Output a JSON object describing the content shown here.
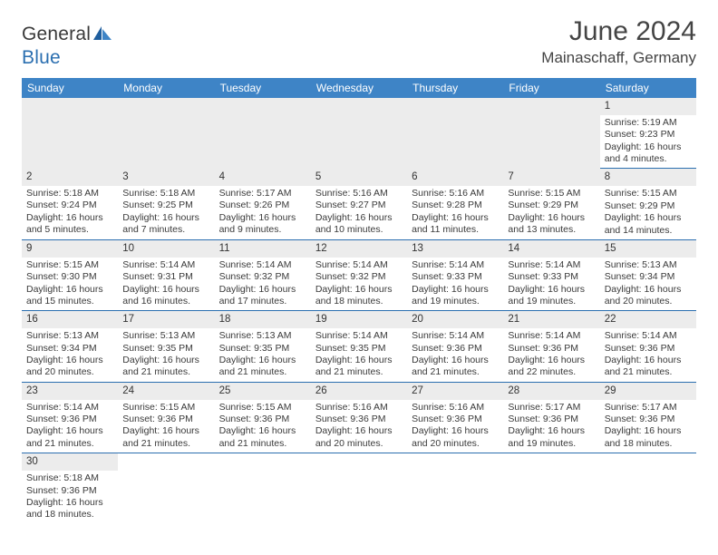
{
  "brand": {
    "name_a": "General",
    "name_b": "Blue"
  },
  "title": "June 2024",
  "location": "Mainaschaff, Germany",
  "colors": {
    "header_bg": "#3e84c6",
    "header_text": "#ffffff",
    "row_divider": "#2b6fb0",
    "daynum_bg": "#ececec",
    "text": "#3a3a3a",
    "brand_blue": "#2b6fb0"
  },
  "columns": [
    "Sunday",
    "Monday",
    "Tuesday",
    "Wednesday",
    "Thursday",
    "Friday",
    "Saturday"
  ],
  "weeks": [
    [
      null,
      null,
      null,
      null,
      null,
      null,
      {
        "n": "1",
        "sr": "Sunrise: 5:19 AM",
        "ss": "Sunset: 9:23 PM",
        "dl1": "Daylight: 16 hours",
        "dl2": "and 4 minutes."
      }
    ],
    [
      {
        "n": "2",
        "sr": "Sunrise: 5:18 AM",
        "ss": "Sunset: 9:24 PM",
        "dl1": "Daylight: 16 hours",
        "dl2": "and 5 minutes."
      },
      {
        "n": "3",
        "sr": "Sunrise: 5:18 AM",
        "ss": "Sunset: 9:25 PM",
        "dl1": "Daylight: 16 hours",
        "dl2": "and 7 minutes."
      },
      {
        "n": "4",
        "sr": "Sunrise: 5:17 AM",
        "ss": "Sunset: 9:26 PM",
        "dl1": "Daylight: 16 hours",
        "dl2": "and 9 minutes."
      },
      {
        "n": "5",
        "sr": "Sunrise: 5:16 AM",
        "ss": "Sunset: 9:27 PM",
        "dl1": "Daylight: 16 hours",
        "dl2": "and 10 minutes."
      },
      {
        "n": "6",
        "sr": "Sunrise: 5:16 AM",
        "ss": "Sunset: 9:28 PM",
        "dl1": "Daylight: 16 hours",
        "dl2": "and 11 minutes."
      },
      {
        "n": "7",
        "sr": "Sunrise: 5:15 AM",
        "ss": "Sunset: 9:29 PM",
        "dl1": "Daylight: 16 hours",
        "dl2": "and 13 minutes."
      },
      {
        "n": "8",
        "sr": "Sunrise: 5:15 AM",
        "ss": "Sunset: 9:29 PM",
        "dl1": "Daylight: 16 hours",
        "dl2": "and 14 minutes."
      }
    ],
    [
      {
        "n": "9",
        "sr": "Sunrise: 5:15 AM",
        "ss": "Sunset: 9:30 PM",
        "dl1": "Daylight: 16 hours",
        "dl2": "and 15 minutes."
      },
      {
        "n": "10",
        "sr": "Sunrise: 5:14 AM",
        "ss": "Sunset: 9:31 PM",
        "dl1": "Daylight: 16 hours",
        "dl2": "and 16 minutes."
      },
      {
        "n": "11",
        "sr": "Sunrise: 5:14 AM",
        "ss": "Sunset: 9:32 PM",
        "dl1": "Daylight: 16 hours",
        "dl2": "and 17 minutes."
      },
      {
        "n": "12",
        "sr": "Sunrise: 5:14 AM",
        "ss": "Sunset: 9:32 PM",
        "dl1": "Daylight: 16 hours",
        "dl2": "and 18 minutes."
      },
      {
        "n": "13",
        "sr": "Sunrise: 5:14 AM",
        "ss": "Sunset: 9:33 PM",
        "dl1": "Daylight: 16 hours",
        "dl2": "and 19 minutes."
      },
      {
        "n": "14",
        "sr": "Sunrise: 5:14 AM",
        "ss": "Sunset: 9:33 PM",
        "dl1": "Daylight: 16 hours",
        "dl2": "and 19 minutes."
      },
      {
        "n": "15",
        "sr": "Sunrise: 5:13 AM",
        "ss": "Sunset: 9:34 PM",
        "dl1": "Daylight: 16 hours",
        "dl2": "and 20 minutes."
      }
    ],
    [
      {
        "n": "16",
        "sr": "Sunrise: 5:13 AM",
        "ss": "Sunset: 9:34 PM",
        "dl1": "Daylight: 16 hours",
        "dl2": "and 20 minutes."
      },
      {
        "n": "17",
        "sr": "Sunrise: 5:13 AM",
        "ss": "Sunset: 9:35 PM",
        "dl1": "Daylight: 16 hours",
        "dl2": "and 21 minutes."
      },
      {
        "n": "18",
        "sr": "Sunrise: 5:13 AM",
        "ss": "Sunset: 9:35 PM",
        "dl1": "Daylight: 16 hours",
        "dl2": "and 21 minutes."
      },
      {
        "n": "19",
        "sr": "Sunrise: 5:14 AM",
        "ss": "Sunset: 9:35 PM",
        "dl1": "Daylight: 16 hours",
        "dl2": "and 21 minutes."
      },
      {
        "n": "20",
        "sr": "Sunrise: 5:14 AM",
        "ss": "Sunset: 9:36 PM",
        "dl1": "Daylight: 16 hours",
        "dl2": "and 21 minutes."
      },
      {
        "n": "21",
        "sr": "Sunrise: 5:14 AM",
        "ss": "Sunset: 9:36 PM",
        "dl1": "Daylight: 16 hours",
        "dl2": "and 22 minutes."
      },
      {
        "n": "22",
        "sr": "Sunrise: 5:14 AM",
        "ss": "Sunset: 9:36 PM",
        "dl1": "Daylight: 16 hours",
        "dl2": "and 21 minutes."
      }
    ],
    [
      {
        "n": "23",
        "sr": "Sunrise: 5:14 AM",
        "ss": "Sunset: 9:36 PM",
        "dl1": "Daylight: 16 hours",
        "dl2": "and 21 minutes."
      },
      {
        "n": "24",
        "sr": "Sunrise: 5:15 AM",
        "ss": "Sunset: 9:36 PM",
        "dl1": "Daylight: 16 hours",
        "dl2": "and 21 minutes."
      },
      {
        "n": "25",
        "sr": "Sunrise: 5:15 AM",
        "ss": "Sunset: 9:36 PM",
        "dl1": "Daylight: 16 hours",
        "dl2": "and 21 minutes."
      },
      {
        "n": "26",
        "sr": "Sunrise: 5:16 AM",
        "ss": "Sunset: 9:36 PM",
        "dl1": "Daylight: 16 hours",
        "dl2": "and 20 minutes."
      },
      {
        "n": "27",
        "sr": "Sunrise: 5:16 AM",
        "ss": "Sunset: 9:36 PM",
        "dl1": "Daylight: 16 hours",
        "dl2": "and 20 minutes."
      },
      {
        "n": "28",
        "sr": "Sunrise: 5:17 AM",
        "ss": "Sunset: 9:36 PM",
        "dl1": "Daylight: 16 hours",
        "dl2": "and 19 minutes."
      },
      {
        "n": "29",
        "sr": "Sunrise: 5:17 AM",
        "ss": "Sunset: 9:36 PM",
        "dl1": "Daylight: 16 hours",
        "dl2": "and 18 minutes."
      }
    ],
    [
      {
        "n": "30",
        "sr": "Sunrise: 5:18 AM",
        "ss": "Sunset: 9:36 PM",
        "dl1": "Daylight: 16 hours",
        "dl2": "and 18 minutes."
      },
      null,
      null,
      null,
      null,
      null,
      null
    ]
  ]
}
